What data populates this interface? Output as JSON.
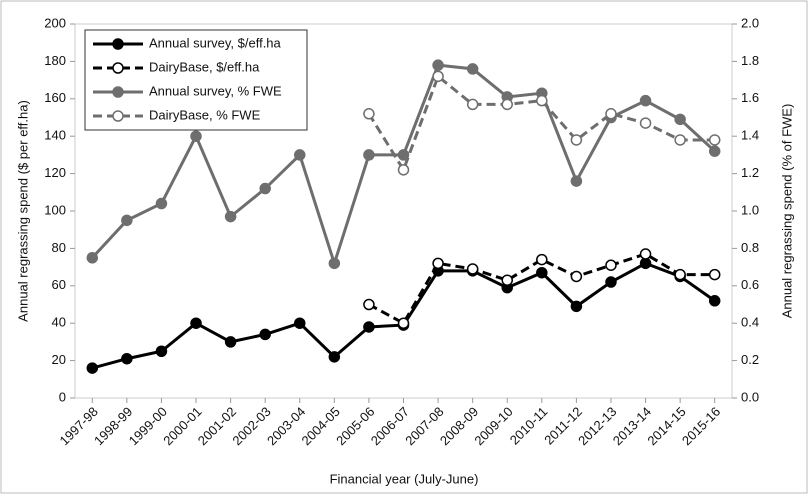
{
  "chart_data": {
    "type": "line",
    "x_label": "Financial year (July-June)",
    "y_label": "Annual regrassing spend ($ per eff.ha)",
    "y2_label": "Annual regrassing spend (% of FWE)",
    "categories": [
      "1997-98",
      "1998-99",
      "1999-00",
      "2000-01",
      "2001-02",
      "2002-03",
      "2003-04",
      "2004-05",
      "2005-06",
      "2006-07",
      "2007-08",
      "2008-09",
      "2009-10",
      "2010-11",
      "2011-12",
      "2012-13",
      "2013-14",
      "2014-15",
      "2015-16"
    ],
    "ylim": [
      0,
      200
    ],
    "yticks": [
      0,
      20,
      40,
      60,
      80,
      100,
      120,
      140,
      160,
      180,
      200
    ],
    "y2lim": [
      0,
      2.0
    ],
    "y2ticks": [
      {
        "value": 0,
        "label": "0.0"
      },
      0.2,
      0.4,
      0.6,
      0.8,
      {
        "value": 1,
        "label": "1.0"
      },
      1.2,
      1.4,
      1.6,
      1.8,
      {
        "value": 2,
        "label": "2.0"
      }
    ],
    "legend": "upper left",
    "series": [
      {
        "name": "Annual survey, $/eff.ha",
        "color": "#000000",
        "dash": false,
        "marker": "filled",
        "axis": "y",
        "values": [
          16,
          21,
          25,
          40,
          30,
          34,
          40,
          22,
          38,
          39,
          68,
          68,
          59,
          67,
          49,
          62,
          72,
          65,
          52
        ]
      },
      {
        "name": "DairyBase, $/eff.ha",
        "color": "#000000",
        "dash": true,
        "marker": "open",
        "axis": "y",
        "values": [
          null,
          null,
          null,
          null,
          null,
          null,
          null,
          null,
          50,
          40,
          72,
          69,
          63,
          74,
          65,
          71,
          77,
          66,
          66
        ]
      },
      {
        "name": "Annual survey, % FWE",
        "color": "#6e6e6e",
        "dash": false,
        "marker": "filled",
        "axis": "y2",
        "values": [
          0.75,
          0.95,
          1.04,
          1.4,
          0.97,
          1.12,
          1.3,
          0.72,
          1.3,
          1.3,
          1.78,
          1.76,
          1.61,
          1.63,
          1.16,
          1.5,
          1.59,
          1.49,
          1.32
        ]
      },
      {
        "name": "DairyBase, % FWE",
        "color": "#6e6e6e",
        "dash": true,
        "marker": "open",
        "axis": "y2",
        "values": [
          null,
          null,
          null,
          null,
          null,
          null,
          null,
          null,
          1.52,
          1.22,
          1.72,
          1.57,
          1.57,
          1.59,
          1.38,
          1.52,
          1.47,
          1.38,
          1.38
        ]
      }
    ]
  }
}
